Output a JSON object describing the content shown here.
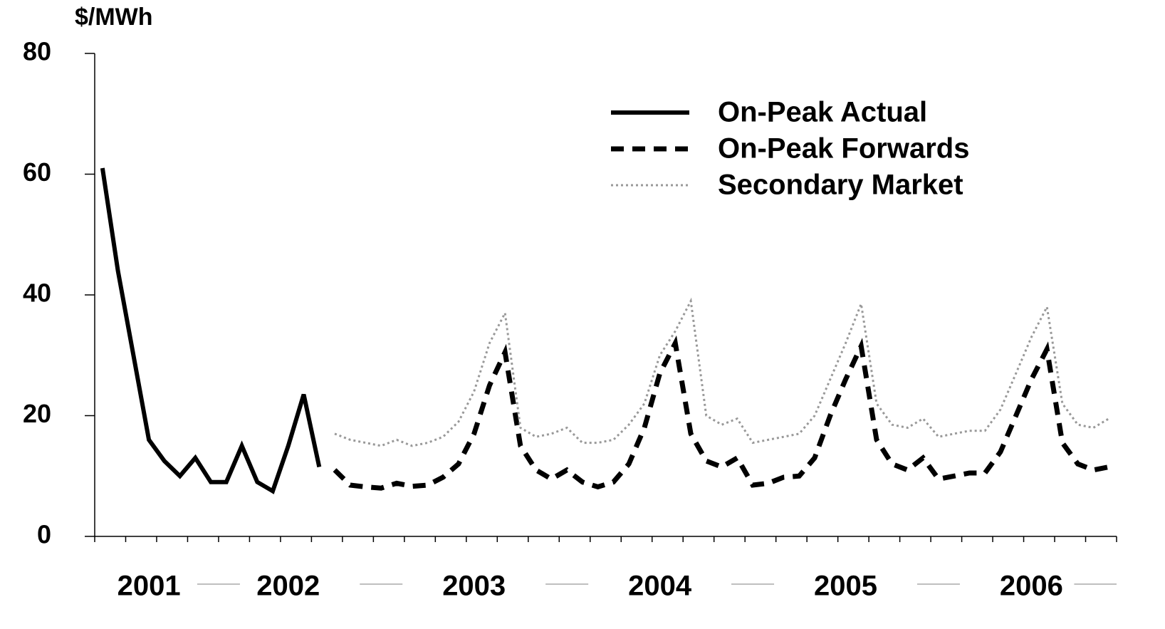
{
  "chart_data": {
    "type": "line",
    "y_label": "$/MWh",
    "ylim": [
      0,
      80
    ],
    "yticks": [
      0,
      20,
      40,
      60,
      80
    ],
    "legend": "top-right",
    "categories": [
      null,
      null,
      null,
      "2001",
      null,
      null,
      null,
      null,
      null,
      null,
      null,
      null,
      "2002",
      null,
      null,
      null,
      null,
      null,
      null,
      null,
      null,
      null,
      null,
      null,
      "2003",
      null,
      null,
      null,
      null,
      null,
      null,
      null,
      null,
      null,
      null,
      null,
      "2004",
      null,
      null,
      null,
      null,
      null,
      null,
      null,
      null,
      null,
      null,
      null,
      "2005",
      null,
      null,
      null,
      null,
      null,
      null,
      null,
      null,
      null,
      null,
      null,
      "2006",
      null,
      null,
      null,
      null,
      null
    ],
    "series": [
      {
        "name": "On-Peak Actual",
        "color": "#000000",
        "dash": "solid",
        "values": [
          61,
          44,
          30,
          16,
          12.5,
          10,
          13,
          9,
          9,
          15,
          9,
          7.5,
          15,
          23.5,
          11.5,
          null,
          null,
          null,
          null,
          null,
          null,
          null,
          null,
          null,
          null,
          null,
          null,
          null,
          null,
          null,
          null,
          null,
          null,
          null,
          null,
          null,
          null,
          null,
          null,
          null,
          null,
          null,
          null,
          null,
          null,
          null,
          null,
          null,
          null,
          null,
          null,
          null,
          null,
          null,
          null,
          null,
          null,
          null,
          null,
          null,
          null,
          null,
          null,
          null,
          null,
          null
        ]
      },
      {
        "name": "On-Peak Forwards",
        "color": "#000000",
        "dash": "dashed",
        "values": [
          null,
          null,
          null,
          null,
          null,
          null,
          null,
          null,
          null,
          null,
          null,
          null,
          null,
          null,
          null,
          11,
          8.5,
          8.2,
          8,
          8.8,
          8.3,
          8.5,
          9.8,
          12,
          17,
          25,
          30.5,
          15,
          11,
          9.5,
          11,
          9,
          8.2,
          9,
          12,
          18,
          27,
          32,
          17,
          12.5,
          11.5,
          13,
          8.5,
          8.8,
          9.8,
          10,
          13,
          20,
          26,
          31.5,
          16,
          12,
          11,
          13,
          9.5,
          10,
          10.5,
          10.5,
          14,
          20,
          26,
          31,
          15.5,
          12,
          11,
          11.5
        ]
      },
      {
        "name": "Secondary Market",
        "color": "#999999",
        "dash": "dotted",
        "values": [
          null,
          null,
          null,
          null,
          null,
          null,
          null,
          null,
          null,
          null,
          null,
          null,
          null,
          null,
          null,
          17,
          16,
          15.5,
          15,
          16,
          15,
          15.5,
          16.5,
          19,
          24,
          32,
          37,
          18,
          16.5,
          17,
          18,
          15.5,
          15.5,
          16,
          18.5,
          22,
          30,
          34,
          39,
          20,
          18.5,
          19.5,
          15.5,
          16,
          16.5,
          17,
          20,
          26,
          32,
          38.5,
          22,
          18.5,
          18,
          19.5,
          16.5,
          17,
          17.5,
          17.5,
          21,
          27,
          33,
          38,
          22,
          18.5,
          18,
          19.5
        ]
      }
    ]
  }
}
